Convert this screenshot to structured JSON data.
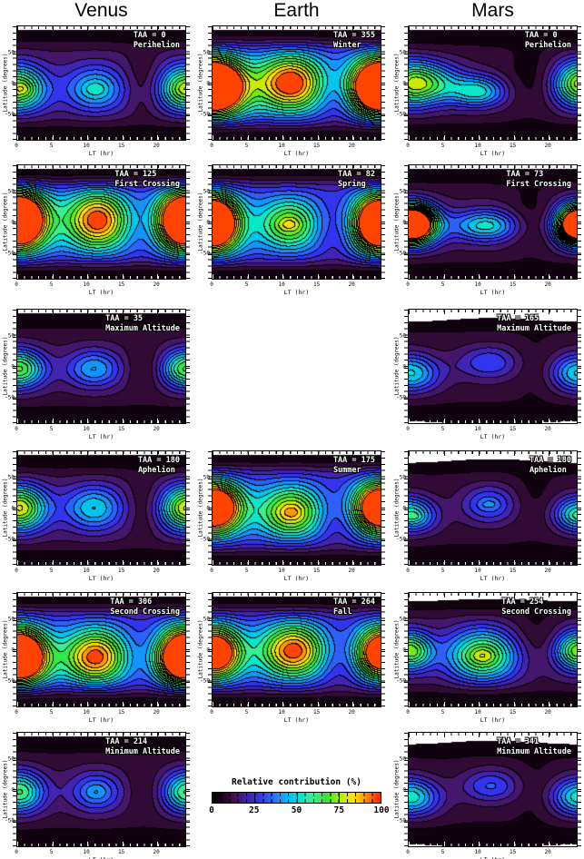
{
  "columns": [
    {
      "title": "Venus"
    },
    {
      "title": "Earth"
    },
    {
      "title": "Mars"
    }
  ],
  "axes": {
    "xlabel": "LT (hr)",
    "ylabel": "Latitude (degrees)",
    "xticks": [
      0,
      5,
      10,
      15,
      20
    ],
    "yticks": [
      50,
      0,
      -50
    ],
    "xrange": [
      0,
      24
    ],
    "yrange": [
      -90,
      90
    ]
  },
  "colorbar": {
    "title": "Relative contribution (%)",
    "ticks": [
      0,
      25,
      50,
      75,
      100
    ],
    "range": [
      0,
      100
    ]
  },
  "chart_data": {
    "type": "heatmap",
    "note": "Filled contour maps of relative contribution (%) vs local time (hr, 0-24) and latitude (deg, -90..90); peaks given as [lt_hr, lat_deg, amplitude_pct, sigma_lt_hr, sigma_lat_deg]; negative amplitude = trough near LT 18",
    "levels": 16,
    "colormap_stops": [
      [
        0.0,
        "#000000"
      ],
      [
        0.06,
        "#21041f"
      ],
      [
        0.13,
        "#44104e"
      ],
      [
        0.2,
        "#45219f"
      ],
      [
        0.28,
        "#3333ee"
      ],
      [
        0.36,
        "#2b6bff"
      ],
      [
        0.44,
        "#00b4ff"
      ],
      [
        0.52,
        "#00e6d2"
      ],
      [
        0.6,
        "#3cf08c"
      ],
      [
        0.68,
        "#2ee62e"
      ],
      [
        0.76,
        "#b4f000"
      ],
      [
        0.84,
        "#ffe100"
      ],
      [
        0.9,
        "#ffa000"
      ],
      [
        0.95,
        "#ff5a00"
      ],
      [
        1.0,
        "#ff1e00"
      ]
    ],
    "panels": [
      {
        "col": 0,
        "row": 0,
        "planet": "Venus",
        "taa": "TAA = 0",
        "label": "Perihelion",
        "base": 14,
        "peaks": [
          [
            0.8,
            -8,
            34,
            2.8,
            26
          ],
          [
            11.2,
            -8,
            36,
            3.0,
            26
          ],
          [
            23.6,
            -6,
            31,
            2.4,
            26
          ],
          [
            0.8,
            -8,
            6,
            1.0,
            7
          ],
          [
            11.2,
            -8,
            6,
            1.0,
            7
          ],
          [
            18,
            5,
            -8,
            1.8,
            45
          ]
        ]
      },
      {
        "col": 0,
        "row": 1,
        "planet": "Venus",
        "taa": "TAA = 125",
        "label": "First Crossing",
        "base": 30,
        "peaks": [
          [
            0.6,
            5,
            66,
            3.0,
            34
          ],
          [
            11.5,
            5,
            70,
            3.2,
            34
          ],
          [
            23.8,
            5,
            64,
            2.6,
            34
          ],
          [
            18,
            -5,
            -6,
            2.0,
            45
          ]
        ]
      },
      {
        "col": 0,
        "row": 2,
        "planet": "Venus",
        "taa": "TAA = 35",
        "label": "Maximum Altitude",
        "base": 10,
        "peaks": [
          [
            1,
            -2,
            32,
            2.6,
            22
          ],
          [
            11,
            -2,
            34,
            2.8,
            22
          ],
          [
            23.7,
            -2,
            30,
            2.2,
            22
          ],
          [
            18,
            -2,
            -7,
            1.6,
            28
          ]
        ]
      },
      {
        "col": 0,
        "row": 3,
        "planet": "Venus",
        "taa": "TAA = 180",
        "label": "Aphelion",
        "base": 12,
        "peaks": [
          [
            1,
            2,
            37,
            2.8,
            26
          ],
          [
            11,
            2,
            38,
            3.0,
            26
          ],
          [
            23.8,
            2,
            35,
            2.4,
            26
          ],
          [
            18,
            5,
            -7,
            1.6,
            40
          ]
        ]
      },
      {
        "col": 0,
        "row": 4,
        "planet": "Venus",
        "taa": "TAA = 306",
        "label": "Second Crossing",
        "base": 28,
        "peaks": [
          [
            0.6,
            -10,
            68,
            3.0,
            32
          ],
          [
            11.2,
            -10,
            70,
            3.2,
            32
          ],
          [
            23.8,
            -10,
            64,
            2.6,
            32
          ],
          [
            18,
            -5,
            -6,
            2.0,
            45
          ]
        ]
      },
      {
        "col": 0,
        "row": 5,
        "planet": "Venus",
        "taa": "TAA = 214",
        "label": "Minimum Altitude",
        "base": 9,
        "peaks": [
          [
            1,
            -2,
            29,
            2.6,
            24
          ],
          [
            11.3,
            -2,
            30,
            2.8,
            24
          ],
          [
            23.8,
            -2,
            27,
            2.2,
            24
          ],
          [
            11.3,
            -2,
            5,
            1.0,
            8
          ],
          [
            18,
            -2,
            -5,
            1.5,
            26
          ]
        ]
      },
      {
        "col": 1,
        "row": 0,
        "planet": "Earth",
        "taa": "TAA = 355",
        "label": "Winter",
        "base": 32,
        "peaks": [
          [
            0.6,
            -5,
            70,
            3.2,
            32
          ],
          [
            11.2,
            2,
            72,
            3.4,
            32
          ],
          [
            23.8,
            -3,
            68,
            2.8,
            32
          ],
          [
            17.8,
            -25,
            -12,
            2.2,
            45
          ]
        ]
      },
      {
        "col": 1,
        "row": 1,
        "planet": "Earth",
        "taa": "TAA = 82",
        "label": "Spring",
        "base": 30,
        "peaks": [
          [
            0.2,
            0,
            66,
            2.8,
            32
          ],
          [
            11,
            -2,
            48,
            3.0,
            28
          ],
          [
            11,
            -2,
            8,
            1.0,
            6
          ],
          [
            23.9,
            0,
            64,
            2.4,
            32
          ],
          [
            17.5,
            -15,
            -10,
            2.2,
            45
          ]
        ]
      },
      {
        "col": 1,
        "row": 3,
        "planet": "Earth",
        "taa": "TAA = 175",
        "label": "Summer",
        "base": 27,
        "peaks": [
          [
            0.6,
            3,
            57,
            3.0,
            30
          ],
          [
            11.3,
            -5,
            59,
            3.2,
            30
          ],
          [
            23.8,
            2,
            55,
            2.6,
            30
          ],
          [
            0.6,
            3,
            6,
            1.0,
            7
          ],
          [
            11.3,
            -5,
            6,
            1.0,
            7
          ],
          [
            18,
            -18,
            -10,
            2.4,
            40
          ]
        ]
      },
      {
        "col": 1,
        "row": 4,
        "planet": "Earth",
        "taa": "TAA = 264",
        "label": "Fall",
        "base": 27,
        "peaks": [
          [
            0.8,
            -3,
            52,
            2.8,
            30
          ],
          [
            11.6,
            0,
            72,
            3.4,
            32
          ],
          [
            23.9,
            -3,
            50,
            2.4,
            30
          ],
          [
            18.2,
            -20,
            -10,
            2.4,
            45
          ]
        ]
      },
      {
        "col": 2,
        "row": 0,
        "planet": "Mars",
        "taa": "TAA = 0",
        "label": "Perihelion",
        "base": 10,
        "peaks": [
          [
            3,
            2,
            45,
            3.2,
            24
          ],
          [
            10,
            -12,
            42,
            2.8,
            18
          ],
          [
            23.8,
            0,
            38,
            2.4,
            28
          ],
          [
            17.5,
            10,
            -7,
            2.6,
            45
          ]
        ]
      },
      {
        "col": 2,
        "row": 1,
        "planet": "Mars",
        "taa": "TAA = 73",
        "label": "First Crossing",
        "base": 11,
        "peaks": [
          [
            1.2,
            -2,
            80,
            2.4,
            22
          ],
          [
            11,
            -4,
            42,
            3.4,
            18
          ],
          [
            23.9,
            -2,
            72,
            2.0,
            22
          ],
          [
            17.3,
            5,
            -8,
            2.2,
            45
          ]
        ]
      },
      {
        "col": 2,
        "row": 2,
        "planet": "Mars",
        "taa": "TAA = 165",
        "label": "Maximum Altitude",
        "base": 8,
        "peaks": [
          [
            1,
            -10,
            23,
            3.0,
            22
          ],
          [
            11.5,
            8,
            23,
            3.2,
            20
          ],
          [
            23.8,
            -8,
            21,
            2.4,
            22
          ],
          [
            18,
            0,
            -4,
            2.0,
            40
          ]
        ],
        "cap": {
          "top": 79,
          "amp": 3,
          "bottom": true
        }
      },
      {
        "col": 2,
        "row": 3,
        "planet": "Mars",
        "taa": "TAA = 180",
        "label": "Aphelion",
        "base": 8,
        "peaks": [
          [
            0.8,
            -12,
            25,
            2.6,
            20
          ],
          [
            11.5,
            8,
            27,
            2.8,
            22
          ],
          [
            23.9,
            -5,
            25,
            2.2,
            20
          ],
          [
            0.8,
            -12,
            6,
            0.9,
            5
          ],
          [
            11.5,
            8,
            6,
            0.9,
            5
          ],
          [
            17.8,
            20,
            -4,
            2.0,
            40
          ]
        ],
        "cap": {
          "top": 80,
          "amp": 3
        }
      },
      {
        "col": 2,
        "row": 4,
        "planet": "Mars",
        "taa": "TAA = 254",
        "label": "Second Crossing",
        "base": 12,
        "peaks": [
          [
            10.6,
            -8,
            62,
            3.6,
            30
          ],
          [
            10.6,
            -8,
            8,
            1.2,
            8
          ],
          [
            0.5,
            0,
            30,
            2.2,
            20
          ],
          [
            23.9,
            0,
            32,
            2.2,
            24
          ],
          [
            18,
            25,
            -8,
            2.6,
            40
          ]
        ],
        "cap": {
          "top": 84,
          "amp": 2
        }
      },
      {
        "col": 2,
        "row": 5,
        "planet": "Mars",
        "taa": "TAA = 341",
        "label": "Minimum Altitude",
        "base": 7,
        "peaks": [
          [
            1,
            -12,
            25,
            3.0,
            22
          ],
          [
            11.8,
            8,
            25,
            3.0,
            20
          ],
          [
            23.9,
            -8,
            23,
            2.4,
            22
          ],
          [
            17.8,
            0,
            -3,
            2.0,
            40
          ]
        ],
        "cap": {
          "top": 80,
          "amp": 3,
          "bottom": true
        }
      }
    ]
  }
}
